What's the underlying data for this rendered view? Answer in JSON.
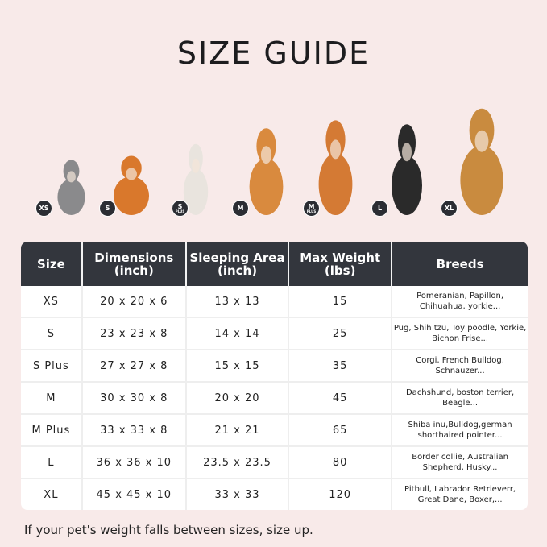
{
  "title": "SIZE GUIDE",
  "pets": [
    {
      "badge": "XS",
      "sub": "",
      "color": "#8a8a8c"
    },
    {
      "badge": "S",
      "sub": "",
      "color": "#d9782c"
    },
    {
      "badge": "S",
      "sub": "PLUS",
      "color": "#e9e4de"
    },
    {
      "badge": "M",
      "sub": "",
      "color": "#d98a3e"
    },
    {
      "badge": "M",
      "sub": "PLUS",
      "color": "#d47a34"
    },
    {
      "badge": "L",
      "sub": "",
      "color": "#2a2a2a"
    },
    {
      "badge": "XL",
      "sub": "",
      "color": "#c98b3f"
    }
  ],
  "table": {
    "headers": [
      "Size",
      "Dimensions (inch)",
      "Sleeping Area (inch)",
      "Max Weight (lbs)",
      "Breeds"
    ],
    "rows": [
      [
        "XS",
        "20 x 20 x 6",
        "13 x 13",
        "15",
        "Pomeranian, Papillon, Chihuahua, yorkie..."
      ],
      [
        "S",
        "23 x 23 x 8",
        "14 x 14",
        "25",
        "Pug, Shih tzu, Toy poodle, Yorkie, Bichon Frise..."
      ],
      [
        "S Plus",
        "27 x 27 x 8",
        "15 x 15",
        "35",
        "Corgi, French Bulldog, Schnauzer..."
      ],
      [
        "M",
        "30 x 30 x 8",
        "20 x 20",
        "45",
        "Dachshund, boston terrier, Beagle..."
      ],
      [
        "M Plus",
        "33 x 33 x 8",
        "21 x 21",
        "65",
        "Shiba inu,Bulldog,german shorthaired pointer..."
      ],
      [
        "L",
        "36 x 36 x 10",
        "23.5 x 23.5",
        "80",
        "Border collie, Australian Shepherd, Husky..."
      ],
      [
        "XL",
        "45 x 45 x 10",
        "33 x 33",
        "120",
        "Pitbull, Labrador Retrieverr, Great Dane, Boxer,..."
      ]
    ]
  },
  "footer": "If your pet's weight falls between sizes, size up."
}
